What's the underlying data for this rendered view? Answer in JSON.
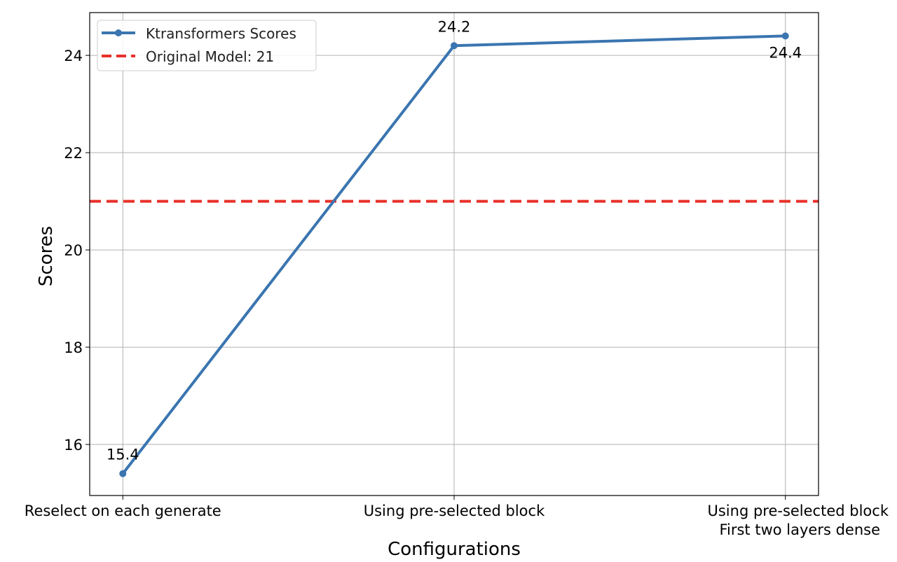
{
  "chart_data": {
    "type": "line",
    "title": "",
    "xlabel": "Configurations",
    "ylabel": "Scores",
    "categories": [
      [
        "Reselect on each generate"
      ],
      [
        "Using pre-selected block"
      ],
      [
        "Using pre-selected block",
        "First two layers dense"
      ]
    ],
    "series": [
      {
        "name": "Ktransformers Scores",
        "values": [
          15.4,
          24.2,
          24.4
        ],
        "color": "#3a75b0",
        "labels": [
          "15.4",
          "24.2",
          "24.4"
        ],
        "label_positions": [
          "above",
          "above",
          "below"
        ]
      }
    ],
    "reference_lines": [
      {
        "name": "Original Model: 21",
        "value": 21,
        "color": "#e8312a",
        "style": "dashed"
      }
    ],
    "yticks": [
      16,
      18,
      20,
      22,
      24
    ],
    "ylim": [
      14.95,
      24.88
    ],
    "grid": true,
    "legend_position": "top-left"
  }
}
